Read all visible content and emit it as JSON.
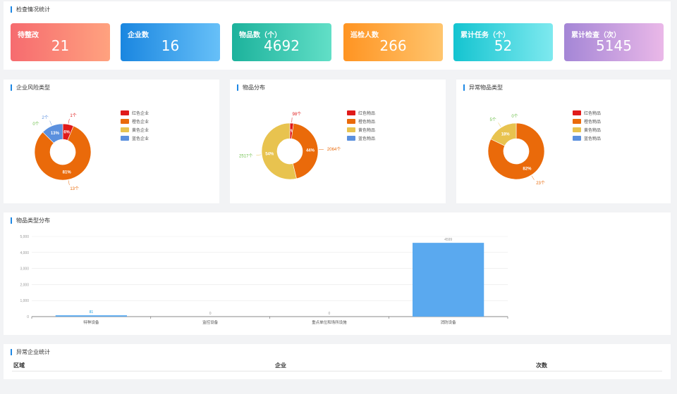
{
  "sections": {
    "inspection_stats": "检查情况统计",
    "enterprise_risk": "企业风险类型",
    "goods_distribution": "物品分布",
    "abnormal_goods": "异常物品类型",
    "goods_type_distribution": "物品类型分布",
    "abnormal_enterprise": "异常企业统计"
  },
  "stats": [
    {
      "label": "待整改",
      "value": "21",
      "color_from": "#f66b6f",
      "color_to": "#ffa27f"
    },
    {
      "label": "企业数",
      "value": "16",
      "color_from": "#1a86e0",
      "color_to": "#67c0f8"
    },
    {
      "label": "物品数（个）",
      "value": "4692",
      "color_from": "#1cb29c",
      "color_to": "#62dfc7"
    },
    {
      "label": "巡检人数",
      "value": "266",
      "color_from": "#ff9422",
      "color_to": "#ffc56e"
    },
    {
      "label": "累计任务（个）",
      "value": "52",
      "color_from": "#14c4d0",
      "color_to": "#7ee9ef"
    },
    {
      "label": "累计检查（次）",
      "value": "5145",
      "color_from": "#a486d6",
      "color_to": "#eab8e8"
    }
  ],
  "pies": [
    {
      "legend": [
        "红色企业",
        "橙色企业",
        "黄色企业",
        "蓝色企业"
      ],
      "colors": [
        "#e01a1a",
        "#ea6a0a",
        "#e8c34f",
        "#5b90de"
      ],
      "values": [
        1,
        13,
        0,
        2
      ],
      "percent_labels": [
        "6%",
        "81%",
        "0%",
        "13%"
      ],
      "count_labels": [
        "1个",
        "13个",
        "0个",
        "2个"
      ]
    },
    {
      "legend": [
        "红色物品",
        "橙色物品",
        "黄色物品",
        "蓝色物品"
      ],
      "colors": [
        "#e01a1a",
        "#ea6a0a",
        "#e8c34f",
        "#5b90de"
      ],
      "values": [
        98,
        2064,
        2517,
        0
      ],
      "percent_labels": [
        "2%",
        "44%",
        "54%",
        ""
      ],
      "count_labels": [
        "98个",
        "2064个",
        "2517个",
        ""
      ]
    },
    {
      "legend": [
        "红色物品",
        "橙色物品",
        "黄色物品",
        "蓝色物品"
      ],
      "colors": [
        "#e01a1a",
        "#ea6a0a",
        "#e8c34f",
        "#5b90de"
      ],
      "values": [
        0,
        23,
        5,
        0
      ],
      "percent_labels": [
        "0%",
        "82%",
        "18%",
        ""
      ],
      "count_labels": [
        "0个",
        "23个",
        "5个",
        ""
      ]
    }
  ],
  "chart_data": {
    "type": "bar",
    "categories": [
      "特种设备",
      "监控设备",
      "重点单位和场所设施",
      "消防设备"
    ],
    "values": [
      81,
      0,
      0,
      4599
    ],
    "value_labels": [
      "81",
      "0",
      "0",
      "4599"
    ],
    "ylim": [
      0,
      5000
    ],
    "yticks": [
      "0",
      "1,000",
      "2,000",
      "3,000",
      "4,000",
      "5,000"
    ],
    "grid": true,
    "bar_color": "#5aa9ef"
  },
  "table": {
    "columns": [
      "区域",
      "企业",
      "次数"
    ]
  }
}
